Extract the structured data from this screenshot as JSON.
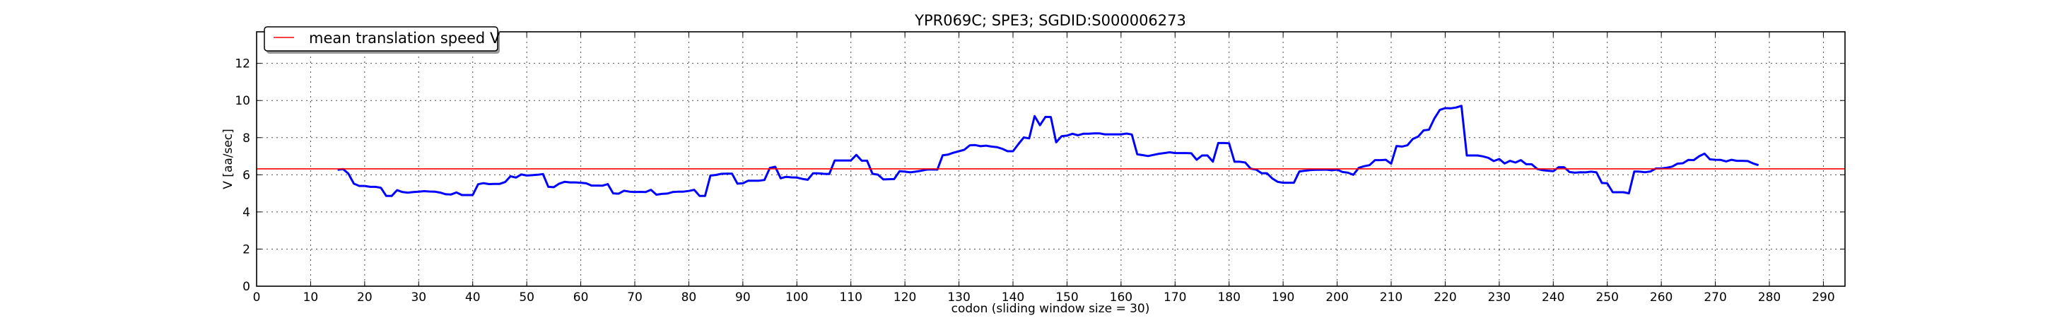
{
  "chart_data": {
    "type": "line",
    "title": "YPR069C; SPE3; SGDID:S000006273",
    "xlabel": "codon  (sliding window size = 30)",
    "ylabel": "V [aa/sec]",
    "xlim": [
      0,
      294
    ],
    "ylim": [
      0,
      13.7
    ],
    "xticks": [
      0,
      10,
      20,
      30,
      40,
      50,
      60,
      70,
      80,
      90,
      100,
      110,
      120,
      130,
      140,
      150,
      160,
      170,
      180,
      190,
      200,
      210,
      220,
      230,
      240,
      250,
      260,
      270,
      280,
      290
    ],
    "yticks": [
      0,
      2,
      4,
      6,
      8,
      10,
      12
    ],
    "grid": true,
    "legend": {
      "placement": "top-left",
      "entries": [
        "mean translation speed V"
      ]
    },
    "mean_line": {
      "name": "mean translation speed V",
      "value": 6.32,
      "color": "#ff0000"
    },
    "series": [
      {
        "name": "V",
        "color": "#0000ff",
        "x_start": 15,
        "values": [
          6.27,
          6.31,
          6.06,
          5.52,
          5.4,
          5.4,
          5.35,
          5.35,
          5.3,
          4.86,
          4.86,
          5.17,
          5.07,
          5.04,
          5.07,
          5.09,
          5.12,
          5.1,
          5.09,
          5.04,
          4.95,
          4.94,
          5.05,
          4.91,
          4.91,
          4.91,
          5.49,
          5.55,
          5.5,
          5.51,
          5.51,
          5.61,
          5.92,
          5.85,
          6.02,
          5.96,
          5.98,
          6.0,
          6.04,
          5.35,
          5.33,
          5.52,
          5.62,
          5.59,
          5.59,
          5.57,
          5.54,
          5.42,
          5.42,
          5.41,
          5.5,
          5.0,
          4.98,
          5.14,
          5.09,
          5.07,
          5.08,
          5.07,
          5.19,
          4.93,
          4.97,
          4.99,
          5.07,
          5.09,
          5.09,
          5.13,
          5.19,
          4.86,
          4.86,
          5.96,
          5.99,
          6.05,
          6.06,
          6.06,
          5.52,
          5.54,
          5.68,
          5.68,
          5.68,
          5.72,
          6.37,
          6.43,
          5.81,
          5.89,
          5.86,
          5.85,
          5.78,
          5.73,
          6.08,
          6.08,
          6.05,
          6.04,
          6.77,
          6.77,
          6.77,
          6.77,
          7.07,
          6.76,
          6.76,
          6.05,
          6.01,
          5.75,
          5.76,
          5.77,
          6.19,
          6.17,
          6.13,
          6.17,
          6.22,
          6.28,
          6.29,
          6.28,
          7.05,
          7.09,
          7.19,
          7.27,
          7.35,
          7.59,
          7.6,
          7.54,
          7.57,
          7.52,
          7.49,
          7.4,
          7.27,
          7.27,
          7.65,
          8.01,
          7.96,
          9.16,
          8.67,
          9.12,
          9.11,
          7.75,
          8.08,
          8.11,
          8.21,
          8.13,
          8.21,
          8.21,
          8.23,
          8.23,
          8.18,
          8.18,
          8.18,
          8.18,
          8.22,
          8.17,
          7.1,
          7.06,
          7.01,
          7.07,
          7.13,
          7.17,
          7.21,
          7.17,
          7.17,
          7.17,
          7.16,
          6.81,
          7.04,
          7.04,
          6.71,
          7.71,
          7.71,
          7.7,
          6.7,
          6.7,
          6.66,
          6.33,
          6.28,
          6.09,
          6.08,
          5.8,
          5.62,
          5.57,
          5.57,
          5.57,
          6.18,
          6.22,
          6.25,
          6.27,
          6.27,
          6.28,
          6.24,
          6.28,
          6.15,
          6.11,
          6.0,
          6.37,
          6.46,
          6.52,
          6.79,
          6.79,
          6.81,
          6.6,
          7.55,
          7.52,
          7.59,
          7.93,
          8.06,
          8.39,
          8.43,
          9.03,
          9.49,
          9.59,
          9.58,
          9.62,
          9.71,
          7.04,
          7.04,
          7.04,
          6.99,
          6.91,
          6.74,
          6.85,
          6.61,
          6.75,
          6.66,
          6.79,
          6.57,
          6.57,
          6.32,
          6.25,
          6.22,
          6.19,
          6.41,
          6.41,
          6.15,
          6.11,
          6.14,
          6.13,
          6.17,
          6.13,
          5.56,
          5.54,
          5.06,
          5.06,
          5.06,
          5.0,
          6.18,
          6.17,
          6.14,
          6.18,
          6.34,
          6.34,
          6.38,
          6.44,
          6.6,
          6.62,
          6.8,
          6.79,
          7.0,
          7.14,
          6.83,
          6.81,
          6.8,
          6.72,
          6.81,
          6.75,
          6.75,
          6.74,
          6.61,
          6.52
        ]
      }
    ]
  }
}
